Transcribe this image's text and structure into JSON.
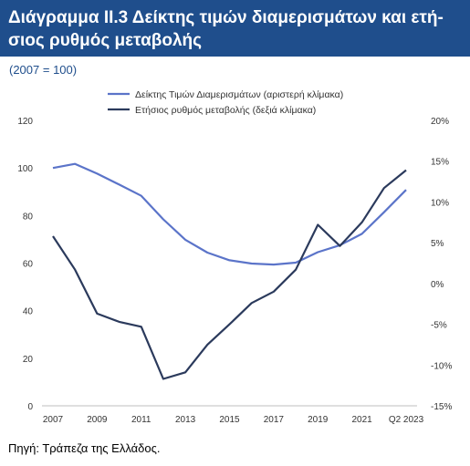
{
  "header": {
    "title": "Διάγραμμα ΙΙ.3 Δείκτης τιμών διαμερισμάτων και ετή-σιος ρυθμός μεταβολής",
    "subtitle": "(2007 = 100)"
  },
  "footer": {
    "source": "Πηγή: Τράπεζα της Ελλάδος."
  },
  "colors": {
    "index": "#5b74c9",
    "yoy": "#2b3a5c",
    "title_bg": "#1f4e8c",
    "axis": "#bfbfbf"
  },
  "chart_data": {
    "type": "line",
    "categories": [
      "2007",
      "2008",
      "2009",
      "2010",
      "2011",
      "2012",
      "2013",
      "2014",
      "2015",
      "2016",
      "2017",
      "2018",
      "2019",
      "2020",
      "2021",
      "2022",
      "Q2 2023"
    ],
    "x_tick_labels": [
      "2007",
      "2009",
      "2011",
      "2013",
      "2015",
      "2017",
      "2019",
      "2021",
      "Q2 2023"
    ],
    "series": [
      {
        "name": "Δείκτης Τιμών Διαμερισμάτων (αριστερή κλίμακα)",
        "axis": "left",
        "values": [
          100,
          101.7,
          97.6,
          93.0,
          88.3,
          78.4,
          69.8,
          64.4,
          61.2,
          59.8,
          59.4,
          60.2,
          64.6,
          67.5,
          72.3,
          81.4,
          90.8
        ]
      },
      {
        "name": "Ετήσιος ρυθμός μεταβολής (δεξιά κλίμακα)",
        "axis": "right",
        "values": [
          5.8,
          1.7,
          -3.7,
          -4.7,
          -5.3,
          -11.7,
          -10.9,
          -7.5,
          -5.0,
          -2.4,
          -1.0,
          1.7,
          7.2,
          4.6,
          7.5,
          11.7,
          13.9
        ]
      }
    ],
    "left_axis": {
      "ylim": [
        0,
        120
      ],
      "ticks": [
        "0",
        "20",
        "40",
        "60",
        "80",
        "100",
        "120"
      ]
    },
    "right_axis": {
      "ylim": [
        -15,
        20
      ],
      "ticks": [
        "-15%",
        "-10%",
        "-5%",
        "0%",
        "5%",
        "10%",
        "15%",
        "20%"
      ]
    },
    "legend": "top-center",
    "grid": false
  }
}
